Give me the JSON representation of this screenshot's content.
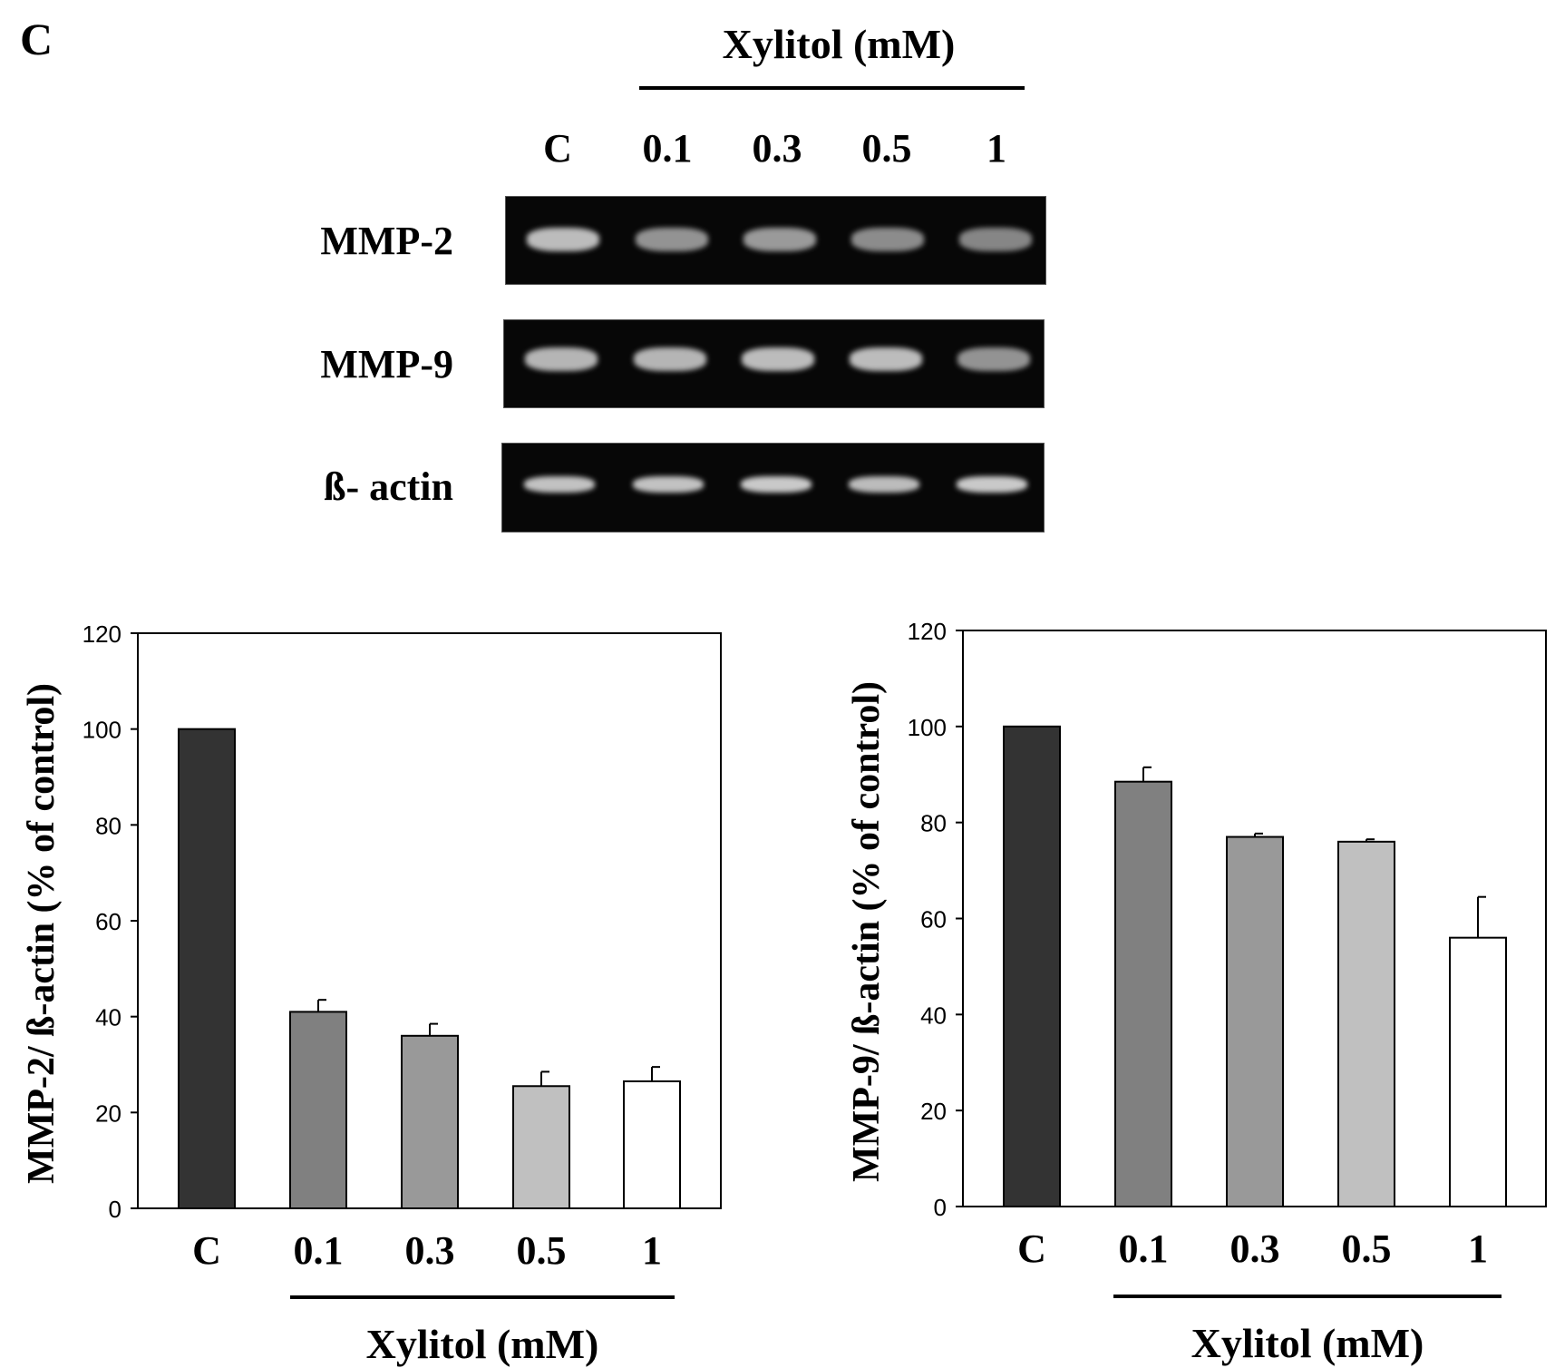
{
  "panel_label": "C",
  "gel": {
    "treatment_title": "Xylitol (mM)",
    "lanes": [
      "C",
      "0.1",
      "0.3",
      "0.5",
      "1"
    ],
    "rows": [
      {
        "label": "MMP-2",
        "intensity": [
          0.85,
          0.55,
          0.6,
          0.5,
          0.45
        ]
      },
      {
        "label": "MMP-9",
        "intensity": [
          0.8,
          0.8,
          0.85,
          0.85,
          0.55
        ]
      },
      {
        "label": "ß- actin",
        "intensity": [
          0.9,
          0.9,
          0.95,
          0.85,
          0.95
        ]
      }
    ]
  },
  "chart_data": [
    {
      "type": "bar",
      "categories": [
        "C",
        "0.1",
        "0.3",
        "0.5",
        "1"
      ],
      "values": [
        100,
        41,
        36,
        25.5,
        26.5
      ],
      "errors": [
        0,
        2.5,
        2.5,
        3,
        3
      ],
      "bar_colors": [
        "#333333",
        "#808080",
        "#999999",
        "#c0c0c0",
        "#ffffff"
      ],
      "ylabel": "MMP-2/ ß-actin (% of control)",
      "xlabel": "Xylitol (mM)",
      "ylim": [
        0,
        120
      ],
      "yticks": [
        "0",
        "20",
        "40",
        "60",
        "80",
        "100",
        "120"
      ]
    },
    {
      "type": "bar",
      "categories": [
        "C",
        "0.1",
        "0.3",
        "0.5",
        "1"
      ],
      "values": [
        100,
        88.5,
        77,
        76,
        56
      ],
      "errors": [
        0,
        3,
        0.7,
        0.5,
        8.5
      ],
      "bar_colors": [
        "#333333",
        "#808080",
        "#999999",
        "#c0c0c0",
        "#ffffff"
      ],
      "ylabel": "MMP-9/ ß-actin (% of control)",
      "xlabel": "Xylitol (mM)",
      "ylim": [
        0,
        120
      ],
      "yticks": [
        "0",
        "20",
        "40",
        "60",
        "80",
        "100",
        "120"
      ]
    }
  ]
}
